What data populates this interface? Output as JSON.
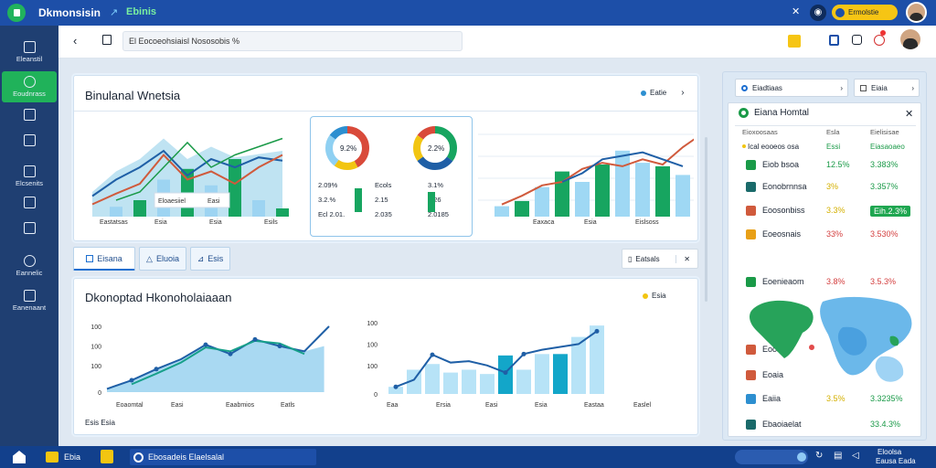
{
  "app": {
    "title": "Dkmonsisin",
    "subtitle": "Ebinis",
    "top_button": "Ermolstie"
  },
  "sidebar": {
    "items": [
      {
        "label": "Eleanstil",
        "icon": "home-icon"
      },
      {
        "label": "Eoudnrass",
        "icon": "chat-icon"
      },
      {
        "label": "",
        "icon": "inbox-icon"
      },
      {
        "label": "",
        "icon": "calendar-icon"
      },
      {
        "label": "Elcsenits",
        "icon": "pen-icon"
      },
      {
        "label": "",
        "icon": "leaf-icon"
      },
      {
        "label": "",
        "icon": "document-icon"
      },
      {
        "label": "Eannelic",
        "icon": "world-icon"
      },
      {
        "label": "Eanenaant",
        "icon": "screen-icon"
      }
    ]
  },
  "search": {
    "value": "El Eocoeohsiaisl Nososobis %"
  },
  "panel1": {
    "title": "Binulanal Wnetsia",
    "legend": "Eatie",
    "chart_a": {
      "tooltip": [
        "Eloaesiiel",
        "Easi"
      ],
      "xticks": [
        "Eastatsas",
        "Esia",
        "Esia",
        "Esils"
      ]
    },
    "donuts": {
      "left_pct": "9.2%",
      "right_pct": "2.2%",
      "left_rows": [
        "2.09%",
        "3.2.%",
        "Ecl 2.01."
      ],
      "mid_rows": [
        "Ecols",
        "2.15",
        "2.035"
      ],
      "right_rows": [
        "3.1%",
        "2.26",
        "2.0185"
      ]
    },
    "chart_b": {
      "xticks": [
        "Eaxaca",
        "Esia",
        "Eislsoss"
      ]
    }
  },
  "tabs": [
    "Eisana",
    "Eluoia",
    "Esis"
  ],
  "panel1_action": "Eatsals",
  "panel2": {
    "title": "Dkonoptad Hkonoholaiaaan",
    "legend": "Esia",
    "left": {
      "yticks": [
        "100",
        "100",
        "100",
        "0"
      ],
      "xticks": [
        "Eoaomtal",
        "Easi",
        "Eaabmios",
        "Eatls"
      ],
      "footnote": "Esis Esia"
    },
    "right": {
      "yticks": [
        "100",
        "100",
        "100",
        "0"
      ],
      "xticks": [
        "Eaa",
        "Ersia",
        "Easi",
        "Esia",
        "Eastaa",
        "Easlel"
      ]
    }
  },
  "right_panel": {
    "select1": "Eiadtiaas",
    "select2": "Eiaia",
    "title": "Eiana Homtal",
    "header": [
      "Eioxoosaas",
      "Esla",
      "Eielisisae"
    ],
    "subheader": [
      "Ical eooeos osa",
      "Essi",
      "Eiasaoaeo"
    ],
    "rows": [
      {
        "name": "Eiob bsoa",
        "pct": "12.5%",
        "value": "3.383%",
        "icon": "trend-up-icon",
        "pct_color": "#1a9a48",
        "val_color": "#1a9a48"
      },
      {
        "name": "Eonobrnnsa",
        "pct": "3%",
        "value": "3.357%",
        "icon": "trend-icon",
        "pct_color": "#d4b000",
        "val_color": "#1a9a48"
      },
      {
        "name": "Eoosonbiss",
        "pct": "3.3%",
        "value": "Eih.2.3%",
        "icon": "grid-icon",
        "pct_color": "#d4b000",
        "val_color": "#ffffff"
      },
      {
        "name": "Eoeosnais",
        "pct": "33%",
        "value": "3.530%",
        "icon": "bolt-icon",
        "pct_color": "#d44040",
        "val_color": "#d44040"
      },
      {
        "name": "Eoenieaom",
        "pct": "3.8%",
        "value": "3.5.3%",
        "icon": "globe-icon",
        "pct_color": "#d44040",
        "val_color": "#d44040"
      },
      {
        "name": "Eooit",
        "pct": "",
        "value": "",
        "icon": "chart-icon",
        "pct_color": "#1a9a48",
        "val_color": "#1a9a48"
      },
      {
        "name": "Eoaia",
        "pct": "",
        "value": "",
        "icon": "factory-icon",
        "pct_color": "#1a9a48",
        "val_color": "#1a9a48"
      },
      {
        "name": "Eaiia",
        "pct": "3.5%",
        "value": "3.3235%",
        "icon": "building-icon",
        "pct_color": "#d4b000",
        "val_color": "#1a9a48"
      },
      {
        "name": "Ebaoiaelat",
        "pct": "",
        "value": "33.4.3%",
        "icon": "factory2-icon",
        "pct_color": "#1a9a48",
        "val_color": "#1a9a48"
      }
    ]
  },
  "taskbar": {
    "item1": "Ebia",
    "item2": "Ebosadeis Elaelsalal",
    "time": "Eloolsa",
    "date": "Eausa Eada"
  },
  "colors": {
    "topbar": "#1d4fa8",
    "sidebar": "#1f3f72",
    "active": "#20b25a",
    "accent_green": "#0fa060",
    "accent_blue": "#1f5fa6"
  }
}
